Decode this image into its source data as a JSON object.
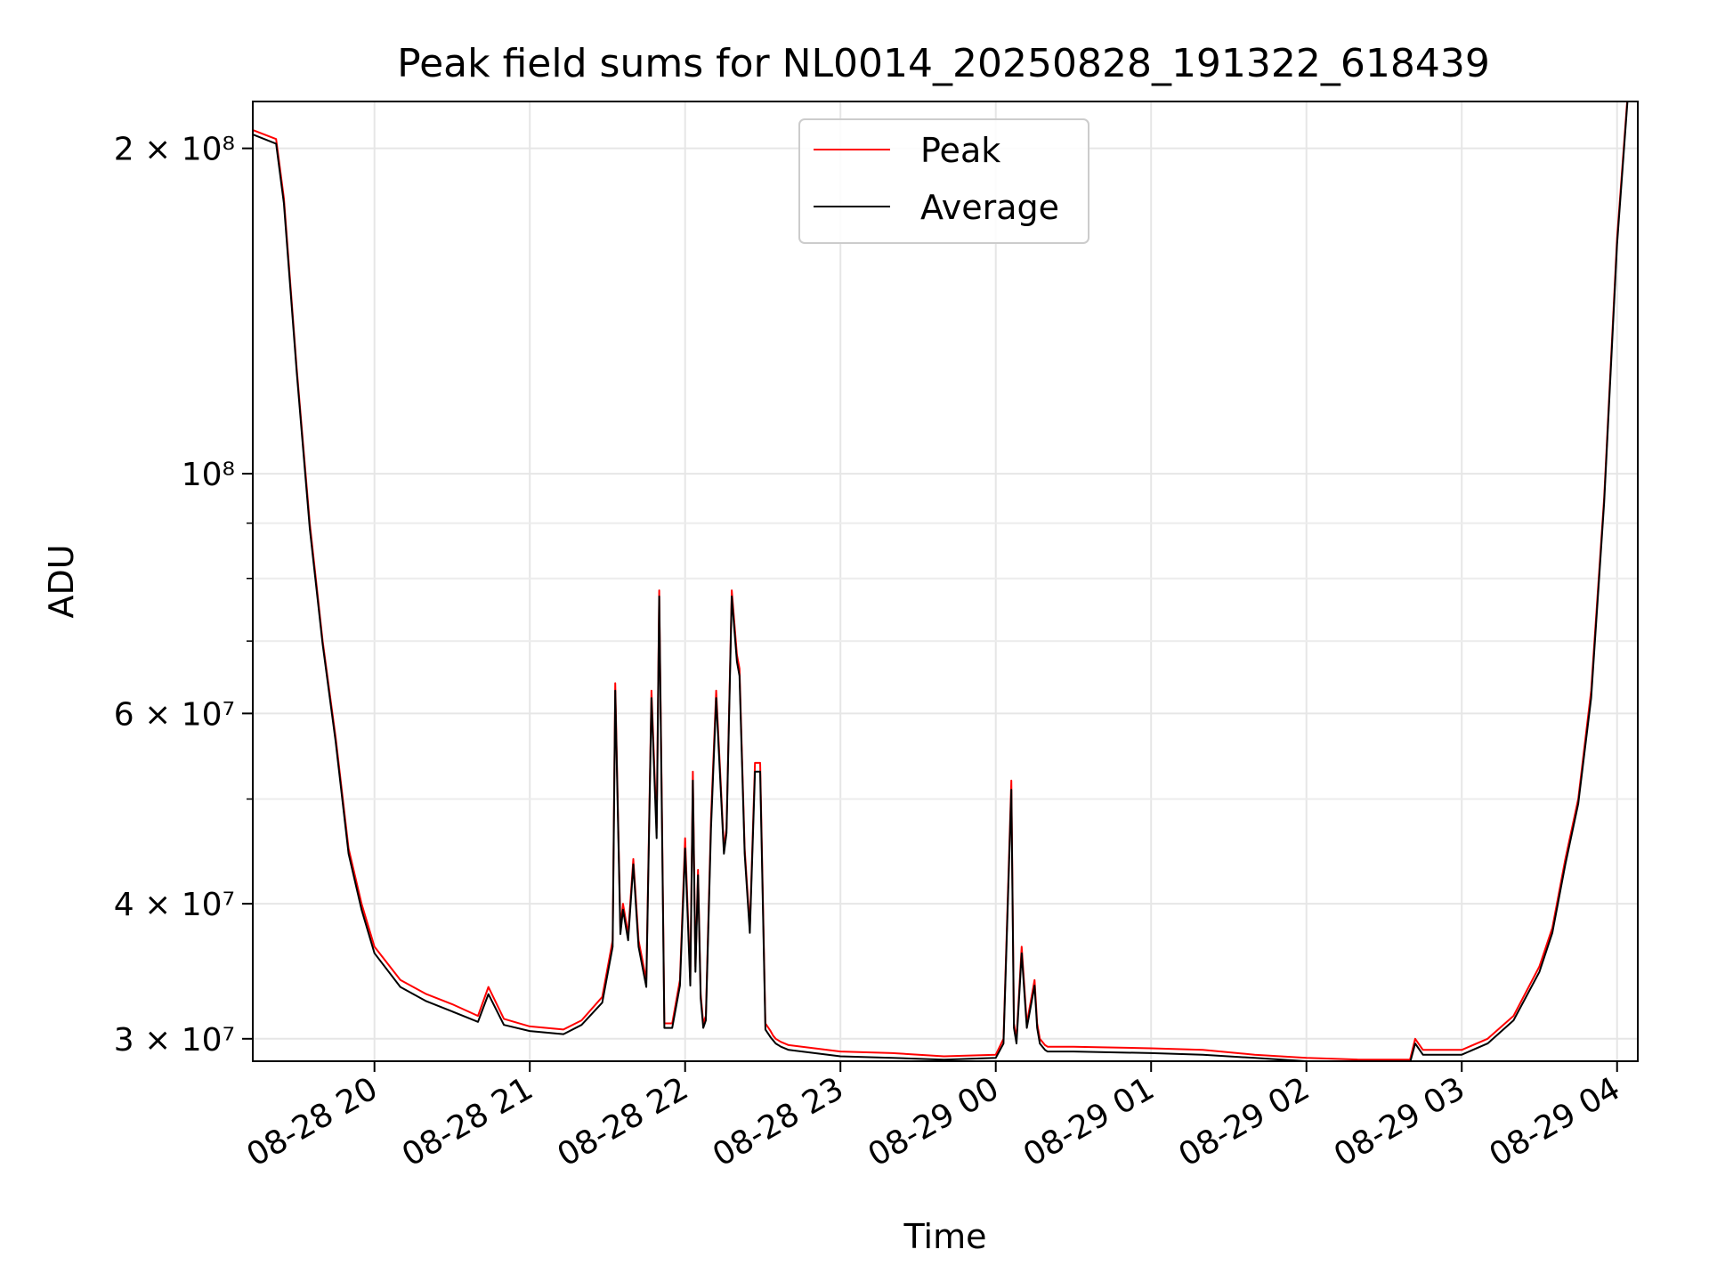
{
  "chart_data": {
    "type": "line",
    "title": "Peak field sums for NL0014_20250828_191322_618439",
    "xlabel": "Time",
    "ylabel": "ADU",
    "yscale": "log",
    "ylim": [
      28600000,
      221000000
    ],
    "xlim": [
      "2025-08-28 19:13",
      "2025-08-29 04:08"
    ],
    "x_ticks": [
      {
        "value": "2025-08-28 20:00",
        "label": "08-28 20"
      },
      {
        "value": "2025-08-28 21:00",
        "label": "08-28 21"
      },
      {
        "value": "2025-08-28 22:00",
        "label": "08-28 22"
      },
      {
        "value": "2025-08-28 23:00",
        "label": "08-28 23"
      },
      {
        "value": "2025-08-29 00:00",
        "label": "08-29 00"
      },
      {
        "value": "2025-08-29 01:00",
        "label": "08-29 01"
      },
      {
        "value": "2025-08-29 02:00",
        "label": "08-29 02"
      },
      {
        "value": "2025-08-29 03:00",
        "label": "08-29 03"
      },
      {
        "value": "2025-08-29 04:00",
        "label": "08-29 04"
      }
    ],
    "y_ticks": [
      {
        "value": 30000000,
        "label": "3 × 10⁷"
      },
      {
        "value": 40000000,
        "label": "4 × 10⁷"
      },
      {
        "value": 60000000,
        "label": "6 × 10⁷"
      },
      {
        "value": 100000000,
        "label": "10⁸"
      },
      {
        "value": 200000000,
        "label": "2 × 10⁸"
      }
    ],
    "y_minor_ticks": [
      50000000,
      70000000,
      80000000,
      90000000
    ],
    "grid": true,
    "legend_position": "top-center",
    "series": [
      {
        "name": "Peak",
        "color": "#ff0000",
        "x": [
          "2025-08-28 19:13",
          "2025-08-28 19:22",
          "2025-08-28 19:25",
          "2025-08-28 19:30",
          "2025-08-28 19:35",
          "2025-08-28 19:40",
          "2025-08-28 19:45",
          "2025-08-28 19:50",
          "2025-08-28 19:55",
          "2025-08-28 20:00",
          "2025-08-28 20:10",
          "2025-08-28 20:20",
          "2025-08-28 20:30",
          "2025-08-28 20:40",
          "2025-08-28 20:44",
          "2025-08-28 20:50",
          "2025-08-28 21:00",
          "2025-08-28 21:13",
          "2025-08-28 21:20",
          "2025-08-28 21:28",
          "2025-08-28 21:32",
          "2025-08-28 21:33",
          "2025-08-28 21:35",
          "2025-08-28 21:36",
          "2025-08-28 21:38",
          "2025-08-28 21:40",
          "2025-08-28 21:42",
          "2025-08-28 21:45",
          "2025-08-28 21:47",
          "2025-08-28 21:49",
          "2025-08-28 21:50",
          "2025-08-28 21:51",
          "2025-08-28 21:52",
          "2025-08-28 21:55",
          "2025-08-28 21:58",
          "2025-08-28 22:00",
          "2025-08-28 22:02",
          "2025-08-28 22:03",
          "2025-08-28 22:04",
          "2025-08-28 22:05",
          "2025-08-28 22:06",
          "2025-08-28 22:07",
          "2025-08-28 22:08",
          "2025-08-28 22:10",
          "2025-08-28 22:12",
          "2025-08-28 22:15",
          "2025-08-28 22:16",
          "2025-08-28 22:18",
          "2025-08-28 22:20",
          "2025-08-28 22:21",
          "2025-08-28 22:23",
          "2025-08-28 22:25",
          "2025-08-28 22:27",
          "2025-08-28 22:29",
          "2025-08-28 22:31",
          "2025-08-28 22:33",
          "2025-08-28 22:34",
          "2025-08-28 22:35",
          "2025-08-28 22:37",
          "2025-08-28 22:40",
          "2025-08-28 22:50",
          "2025-08-28 23:00",
          "2025-08-28 23:20",
          "2025-08-28 23:40",
          "2025-08-29 00:00",
          "2025-08-29 00:03",
          "2025-08-29 00:06",
          "2025-08-29 00:07",
          "2025-08-29 00:08",
          "2025-08-29 00:10",
          "2025-08-29 00:12",
          "2025-08-29 00:15",
          "2025-08-29 00:16",
          "2025-08-29 00:17",
          "2025-08-29 00:19",
          "2025-08-29 00:20",
          "2025-08-29 00:21",
          "2025-08-29 00:22",
          "2025-08-29 00:25",
          "2025-08-29 00:30",
          "2025-08-29 01:00",
          "2025-08-29 01:20",
          "2025-08-29 01:40",
          "2025-08-29 02:00",
          "2025-08-29 02:20",
          "2025-08-29 02:40",
          "2025-08-29 02:42",
          "2025-08-29 02:45",
          "2025-08-29 03:00",
          "2025-08-29 03:10",
          "2025-08-29 03:20",
          "2025-08-29 03:30",
          "2025-08-29 03:35",
          "2025-08-29 03:40",
          "2025-08-29 03:45",
          "2025-08-29 03:50",
          "2025-08-29 03:55",
          "2025-08-29 04:00",
          "2025-08-29 04:04"
        ],
        "y": [
          208000000,
          204000000,
          180000000,
          125000000,
          90000000,
          70000000,
          57000000,
          45000000,
          40000000,
          36500000,
          34000000,
          33000000,
          32300000,
          31500000,
          33500000,
          31300000,
          30800000,
          30600000,
          31200000,
          32800000,
          37000000,
          64000000,
          38000000,
          40000000,
          37500000,
          44000000,
          37000000,
          34000000,
          63000000,
          47000000,
          78000000,
          50000000,
          31000000,
          31000000,
          34000000,
          46000000,
          34000000,
          53000000,
          35000000,
          43000000,
          33000000,
          31000000,
          31500000,
          48000000,
          63000000,
          45000000,
          47000000,
          78000000,
          68000000,
          66000000,
          45000000,
          38000000,
          54000000,
          54000000,
          31000000,
          30500000,
          30200000,
          30000000,
          29800000,
          29600000,
          29400000,
          29200000,
          29100000,
          28900000,
          29000000,
          30000000,
          52000000,
          31000000,
          30000000,
          36500000,
          31000000,
          34000000,
          31000000,
          30000000,
          29600000,
          29500000,
          29500000,
          29500000,
          29500000,
          29500000,
          29400000,
          29300000,
          29000000,
          28800000,
          28700000,
          28700000,
          30000000,
          29300000,
          29300000,
          30000000,
          31500000,
          35000000,
          38000000,
          44000000,
          50000000,
          63000000,
          95000000,
          165000000,
          223000000
        ]
      },
      {
        "name": "Average",
        "color": "#000000",
        "x": [
          "2025-08-28 19:13",
          "2025-08-28 19:22",
          "2025-08-28 19:25",
          "2025-08-28 19:30",
          "2025-08-28 19:35",
          "2025-08-28 19:40",
          "2025-08-28 19:45",
          "2025-08-28 19:50",
          "2025-08-28 19:55",
          "2025-08-28 20:00",
          "2025-08-28 20:10",
          "2025-08-28 20:20",
          "2025-08-28 20:30",
          "2025-08-28 20:40",
          "2025-08-28 20:44",
          "2025-08-28 20:50",
          "2025-08-28 21:00",
          "2025-08-28 21:13",
          "2025-08-28 21:20",
          "2025-08-28 21:28",
          "2025-08-28 21:32",
          "2025-08-28 21:33",
          "2025-08-28 21:35",
          "2025-08-28 21:36",
          "2025-08-28 21:38",
          "2025-08-28 21:40",
          "2025-08-28 21:42",
          "2025-08-28 21:45",
          "2025-08-28 21:47",
          "2025-08-28 21:49",
          "2025-08-28 21:50",
          "2025-08-28 21:51",
          "2025-08-28 21:52",
          "2025-08-28 21:55",
          "2025-08-28 21:58",
          "2025-08-28 22:00",
          "2025-08-28 22:02",
          "2025-08-28 22:03",
          "2025-08-28 22:04",
          "2025-08-28 22:05",
          "2025-08-28 22:06",
          "2025-08-28 22:07",
          "2025-08-28 22:08",
          "2025-08-28 22:10",
          "2025-08-28 22:12",
          "2025-08-28 22:15",
          "2025-08-28 22:16",
          "2025-08-28 22:18",
          "2025-08-28 22:20",
          "2025-08-28 22:21",
          "2025-08-28 22:23",
          "2025-08-28 22:25",
          "2025-08-28 22:27",
          "2025-08-28 22:29",
          "2025-08-28 22:31",
          "2025-08-28 22:33",
          "2025-08-28 22:34",
          "2025-08-28 22:35",
          "2025-08-28 22:37",
          "2025-08-28 22:40",
          "2025-08-28 22:50",
          "2025-08-28 23:00",
          "2025-08-28 23:20",
          "2025-08-28 23:40",
          "2025-08-29 00:00",
          "2025-08-29 00:03",
          "2025-08-29 00:06",
          "2025-08-29 00:07",
          "2025-08-29 00:08",
          "2025-08-29 00:10",
          "2025-08-29 00:12",
          "2025-08-29 00:15",
          "2025-08-29 00:16",
          "2025-08-29 00:17",
          "2025-08-29 00:19",
          "2025-08-29 00:20",
          "2025-08-29 00:21",
          "2025-08-29 00:22",
          "2025-08-29 00:25",
          "2025-08-29 00:30",
          "2025-08-29 01:00",
          "2025-08-29 01:20",
          "2025-08-29 01:40",
          "2025-08-29 02:00",
          "2025-08-29 02:20",
          "2025-08-29 02:40",
          "2025-08-29 02:42",
          "2025-08-29 02:45",
          "2025-08-29 03:00",
          "2025-08-29 03:10",
          "2025-08-29 03:20",
          "2025-08-29 03:30",
          "2025-08-29 03:35",
          "2025-08-29 03:40",
          "2025-08-29 03:45",
          "2025-08-29 03:50",
          "2025-08-29 03:55",
          "2025-08-29 04:00",
          "2025-08-29 04:04"
        ],
        "y": [
          206000000,
          202000000,
          178000000,
          124000000,
          89000000,
          69500000,
          56500000,
          44500000,
          39500000,
          36000000,
          33500000,
          32500000,
          31800000,
          31100000,
          33000000,
          30900000,
          30500000,
          30300000,
          30900000,
          32400000,
          36500000,
          63000000,
          37500000,
          39500000,
          37000000,
          43500000,
          36500000,
          33500000,
          62000000,
          46000000,
          77000000,
          49000000,
          30700000,
          30700000,
          33600000,
          45000000,
          33600000,
          52000000,
          34600000,
          42500000,
          32700000,
          30700000,
          31200000,
          47000000,
          62000000,
          44500000,
          46500000,
          77000000,
          67000000,
          65000000,
          44500000,
          37600000,
          53000000,
          53000000,
          30600000,
          30100000,
          29900000,
          29700000,
          29500000,
          29300000,
          29100000,
          28900000,
          28800000,
          28700000,
          28800000,
          29700000,
          51000000,
          30700000,
          29700000,
          36000000,
          30700000,
          33600000,
          30700000,
          29700000,
          29300000,
          29200000,
          29200000,
          29200000,
          29200000,
          29200000,
          29100000,
          29000000,
          28800000,
          28600000,
          28500000,
          28500000,
          29700000,
          29000000,
          29000000,
          29700000,
          31200000,
          34600000,
          37600000,
          43500000,
          49500000,
          62000000,
          94000000,
          163000000,
          221000000
        ]
      }
    ]
  }
}
